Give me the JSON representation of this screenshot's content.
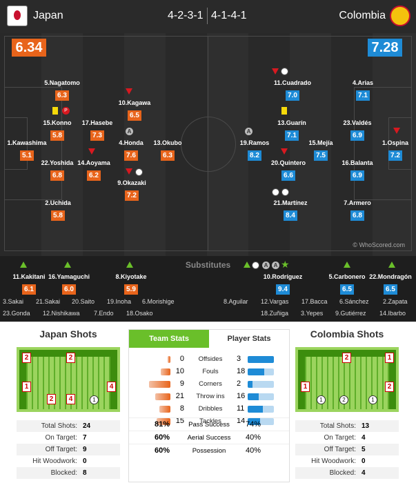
{
  "header": {
    "home_team": "Japan",
    "away_team": "Colombia",
    "home_formation": "4-2-3-1",
    "away_formation": "4-1-4-1",
    "home_rating": "6.34",
    "away_rating": "7.28",
    "watermark": "© WhoScored.com"
  },
  "colors": {
    "home": "#e8641b",
    "away": "#1e8bd6",
    "accent": "#6abf2a"
  },
  "home_players": [
    {
      "name": "1.Kawashima",
      "rating": "5.1"
    },
    {
      "name": "5.Nagatomo",
      "rating": "6.3"
    },
    {
      "name": "15.Konno",
      "rating": "5.8"
    },
    {
      "name": "22.Yoshida",
      "rating": "6.8"
    },
    {
      "name": "2.Uchida",
      "rating": "5.8"
    },
    {
      "name": "17.Hasebe",
      "rating": "7.3"
    },
    {
      "name": "14.Aoyama",
      "rating": "6.2"
    },
    {
      "name": "10.Kagawa",
      "rating": "6.5"
    },
    {
      "name": "4.Honda",
      "rating": "7.6"
    },
    {
      "name": "9.Okazaki",
      "rating": "7.2"
    },
    {
      "name": "13.Okubo",
      "rating": "6.3"
    }
  ],
  "away_players": [
    {
      "name": "1.Ospina",
      "rating": "7.2"
    },
    {
      "name": "4.Arias",
      "rating": "7.1"
    },
    {
      "name": "23.Valdés",
      "rating": "6.9"
    },
    {
      "name": "16.Balanta",
      "rating": "6.9"
    },
    {
      "name": "7.Armero",
      "rating": "6.8"
    },
    {
      "name": "15.Mejía",
      "rating": "7.5"
    },
    {
      "name": "11.Cuadrado",
      "rating": "7.0"
    },
    {
      "name": "13.Guarín",
      "rating": "7.1"
    },
    {
      "name": "20.Quintero",
      "rating": "6.6"
    },
    {
      "name": "21.Martínez",
      "rating": "8.4"
    },
    {
      "name": "19.Ramos",
      "rating": "8.2"
    }
  ],
  "event_marks": {
    "assist": "A",
    "pen": "P",
    "ball_count": "2"
  },
  "subs": {
    "title": "Substitutes",
    "home": [
      {
        "name": "11.Kakitani",
        "rating": "6.1"
      },
      {
        "name": "16.Yamaguchi",
        "rating": "6.0"
      },
      {
        "name": "8.Kiyotake",
        "rating": "5.9"
      }
    ],
    "away": [
      {
        "name": "10.Rodríguez",
        "rating": "9.4"
      },
      {
        "name": "5.Carbonero",
        "rating": "6.5"
      },
      {
        "name": "22.Mondragón",
        "rating": "6.5"
      }
    ],
    "home_unused": [
      "3.Sakai",
      "21.Sakai",
      "20.Saito",
      "19.Inoha",
      "6.Morishige",
      "23.Gonda",
      "12.Nishikawa",
      "7.Endo",
      "18.Osako"
    ],
    "away_unused": [
      "8.Aguilar",
      "12.Vargas",
      "17.Bacca",
      "6.Sánchez",
      "2.Zapata",
      "18.Zuñiga",
      "3.Yepes",
      "9.Gutiérrez",
      "14.Ibarbo"
    ]
  },
  "home_shots": {
    "title": "Japan Shots",
    "zones": [
      "2",
      "2",
      "1",
      "4",
      "2",
      "4",
      "1"
    ],
    "labels": [
      "Total Shots:",
      "On Target:",
      "Off Target:",
      "Hit Woodwork:",
      "Blocked:"
    ],
    "values": [
      "24",
      "7",
      "9",
      "0",
      "8"
    ]
  },
  "away_shots": {
    "title": "Colombia Shots",
    "zones": [
      "2",
      "1",
      "1",
      "2",
      "1",
      "2",
      "1"
    ],
    "labels": [
      "Total Shots:",
      "On Target:",
      "Off Target:",
      "Hit Woodwork:",
      "Blocked:"
    ],
    "values": [
      "13",
      "4",
      "5",
      "0",
      "4"
    ]
  },
  "tabs": {
    "team": "Team Stats",
    "player": "Player Stats"
  },
  "team_stats": [
    {
      "label": "Offsides",
      "home": "0",
      "away": "3",
      "home_frac": 0.0,
      "away_frac": 1.0
    },
    {
      "label": "Fouls",
      "home": "10",
      "away": "18",
      "home_frac": 0.36,
      "away_frac": 0.64
    },
    {
      "label": "Corners",
      "home": "9",
      "away": "2",
      "home_frac": 0.82,
      "away_frac": 0.18
    },
    {
      "label": "Throw ins",
      "home": "21",
      "away": "16",
      "home_frac": 0.57,
      "away_frac": 0.43
    },
    {
      "label": "Dribbles",
      "home": "8",
      "away": "11",
      "home_frac": 0.42,
      "away_frac": 0.58
    },
    {
      "label": "Tackles",
      "home": "15",
      "away": "14",
      "home_frac": 0.52,
      "away_frac": 0.48
    }
  ],
  "pct_stats": [
    {
      "label": "Pass Success",
      "home": "81%",
      "away": "74%"
    },
    {
      "label": "Aerial Success",
      "home": "60%",
      "away": "40%"
    },
    {
      "label": "Possession",
      "home": "60%",
      "away": "40%"
    }
  ]
}
